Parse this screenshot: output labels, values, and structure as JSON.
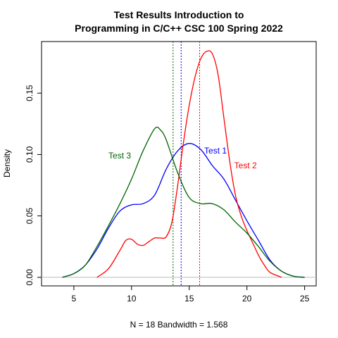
{
  "chart_data": {
    "type": "line",
    "title": "Test Results Introduction to Programming in C/C++ CSC 100 Spring 2022",
    "title_lines": [
      "Test Results Introduction to",
      "Programming in C/C++ CSC 100 Spring 2022"
    ],
    "xlabel": "N = 18   Bandwidth = 1.568",
    "ylabel": "Density",
    "xlim": [
      2.2,
      26.0
    ],
    "ylim": [
      -0.007,
      0.192
    ],
    "xticks": [
      5,
      10,
      15,
      20,
      25
    ],
    "xtick_labels": [
      "5",
      "10",
      "15",
      "20",
      "25"
    ],
    "yticks": [
      0.0,
      0.05,
      0.1,
      0.15
    ],
    "ytick_labels": [
      "0.00",
      "0.05",
      "0.10",
      "0.15"
    ],
    "grid": false,
    "legend": "none",
    "baseline": 0,
    "series": [
      {
        "name": "Test 1",
        "color": "#0000ff",
        "mean": 14.3,
        "points": [
          [
            4,
            0
          ],
          [
            5,
            0.003
          ],
          [
            6,
            0.01
          ],
          [
            7,
            0.023
          ],
          [
            8,
            0.04
          ],
          [
            9,
            0.054
          ],
          [
            10,
            0.059
          ],
          [
            11,
            0.06
          ],
          [
            12,
            0.067
          ],
          [
            13,
            0.088
          ],
          [
            14,
            0.103
          ],
          [
            15,
            0.109
          ],
          [
            16,
            0.104
          ],
          [
            17,
            0.091
          ],
          [
            18,
            0.08
          ],
          [
            19,
            0.063
          ],
          [
            20,
            0.046
          ],
          [
            21,
            0.03
          ],
          [
            22,
            0.014
          ],
          [
            23,
            0.005
          ],
          [
            24,
            0.001
          ],
          [
            25,
            0
          ]
        ]
      },
      {
        "name": "Test 2",
        "color": "#ff0000",
        "mean": 15.9,
        "points": [
          [
            7,
            0
          ],
          [
            8,
            0.007
          ],
          [
            9,
            0.022
          ],
          [
            9.5,
            0.03
          ],
          [
            10,
            0.031
          ],
          [
            10.5,
            0.027
          ],
          [
            11,
            0.026
          ],
          [
            11.5,
            0.029
          ],
          [
            12,
            0.032
          ],
          [
            12.5,
            0.032
          ],
          [
            13,
            0.033
          ],
          [
            13.5,
            0.045
          ],
          [
            14,
            0.075
          ],
          [
            14.5,
            0.11
          ],
          [
            15,
            0.14
          ],
          [
            15.5,
            0.163
          ],
          [
            16,
            0.178
          ],
          [
            16.5,
            0.184
          ],
          [
            17,
            0.182
          ],
          [
            17.5,
            0.165
          ],
          [
            18,
            0.13
          ],
          [
            18.5,
            0.095
          ],
          [
            19,
            0.067
          ],
          [
            19.5,
            0.05
          ],
          [
            20,
            0.038
          ],
          [
            20.5,
            0.028
          ],
          [
            21,
            0.018
          ],
          [
            21.5,
            0.01
          ],
          [
            22,
            0.004
          ],
          [
            23,
            0
          ]
        ]
      },
      {
        "name": "Test 3",
        "color": "#006400",
        "mean": 13.6,
        "points": [
          [
            4,
            0
          ],
          [
            5,
            0.003
          ],
          [
            6,
            0.01
          ],
          [
            7,
            0.025
          ],
          [
            8,
            0.042
          ],
          [
            9,
            0.06
          ],
          [
            10,
            0.08
          ],
          [
            11,
            0.103
          ],
          [
            12,
            0.121
          ],
          [
            12.5,
            0.12
          ],
          [
            13,
            0.112
          ],
          [
            14,
            0.085
          ],
          [
            15,
            0.065
          ],
          [
            16,
            0.06
          ],
          [
            17,
            0.06
          ],
          [
            18,
            0.055
          ],
          [
            19,
            0.045
          ],
          [
            20,
            0.036
          ],
          [
            21,
            0.025
          ],
          [
            22,
            0.013
          ],
          [
            23,
            0.005
          ],
          [
            24,
            0.001
          ],
          [
            25,
            0
          ]
        ]
      }
    ],
    "annotations": [
      {
        "text": "Test 1",
        "x": 16.3,
        "y": 0.103,
        "color": "#0000ff"
      },
      {
        "text": "Test 2",
        "x": 18.9,
        "y": 0.091,
        "color": "#ff0000"
      },
      {
        "text": "Test 3",
        "x": 8.0,
        "y": 0.099,
        "color": "#006400"
      }
    ]
  }
}
